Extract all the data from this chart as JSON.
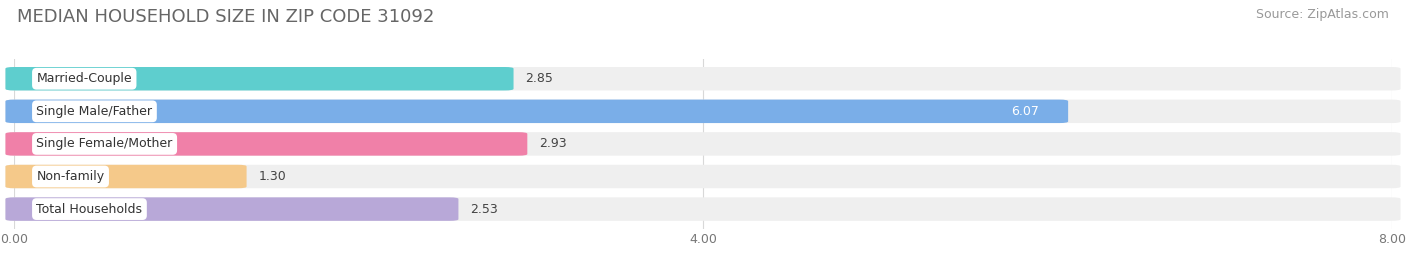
{
  "title": "MEDIAN HOUSEHOLD SIZE IN ZIP CODE 31092",
  "source": "Source: ZipAtlas.com",
  "categories": [
    "Married-Couple",
    "Single Male/Father",
    "Single Female/Mother",
    "Non-family",
    "Total Households"
  ],
  "values": [
    2.85,
    6.07,
    2.93,
    1.3,
    2.53
  ],
  "bar_colors": [
    "#5ecece",
    "#7aaee8",
    "#f080a8",
    "#f5c98a",
    "#b8a8d8"
  ],
  "bar_bg_color": "#efefef",
  "xlim": [
    0,
    8.0
  ],
  "xticks": [
    0.0,
    4.0,
    8.0
  ],
  "xtick_labels": [
    "0.00",
    "4.00",
    "8.00"
  ],
  "title_fontsize": 13,
  "source_fontsize": 9,
  "label_fontsize": 9,
  "value_fontsize": 9,
  "background_color": "#ffffff",
  "bar_height": 0.62,
  "bar_gap": 0.38
}
